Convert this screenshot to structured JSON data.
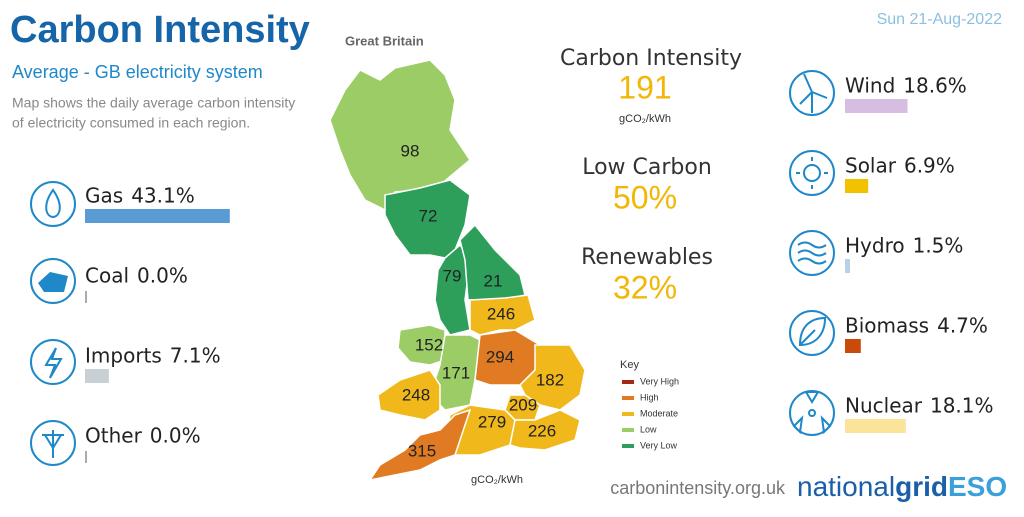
{
  "header": {
    "title": "Carbon Intensity",
    "region": "Great Britain",
    "date": "Sun 21-Aug-2022",
    "subtitle": "Average - GB electricity system",
    "description": [
      "Map shows the daily average carbon intensity",
      "of electricity consumed in each region."
    ]
  },
  "summary": {
    "intensity_title": "Carbon Intensity",
    "intensity_value": "191",
    "intensity_unit": "gCO₂/kWh",
    "low_carbon_title": "Low Carbon",
    "low_carbon_value": "50%",
    "renewables_title": "Renewables",
    "renewables_value": "32%"
  },
  "fuels": [
    {
      "name": "Gas",
      "label": "43.1%",
      "value": 43.1,
      "color": "#5b9bd5"
    },
    {
      "name": "Coal",
      "label": "0.0%",
      "value": 0.0,
      "color": "#555555"
    },
    {
      "name": "Imports",
      "label": "7.1%",
      "value": 7.1,
      "color": "#c8d0d4"
    },
    {
      "name": "Other",
      "label": "0.0%",
      "value": 0.0,
      "color": "#555555"
    },
    {
      "name": "Wind",
      "label": "18.6%",
      "value": 18.6,
      "color": "#d7bde2"
    },
    {
      "name": "Solar",
      "label": "6.9%",
      "value": 6.9,
      "color": "#f2c200"
    },
    {
      "name": "Hydro",
      "label": "1.5%",
      "value": 1.5,
      "color": "#b8d0e8"
    },
    {
      "name": "Biomass",
      "label": "4.7%",
      "value": 4.7,
      "color": "#c94a0a"
    },
    {
      "name": "Nuclear",
      "label": "18.1%",
      "value": 18.1,
      "color": "#fbe39a"
    }
  ],
  "regions": [
    {
      "value": 98,
      "color": "#9ccc65"
    },
    {
      "value": 72,
      "color": "#2e9e5b"
    },
    {
      "value": 79,
      "color": "#2e9e5b"
    },
    {
      "value": 21,
      "color": "#2e9e5b"
    },
    {
      "value": 246,
      "color": "#f0b81a"
    },
    {
      "value": 152,
      "color": "#9ccc65"
    },
    {
      "value": 171,
      "color": "#9ccc65"
    },
    {
      "value": 294,
      "color": "#e07b24"
    },
    {
      "value": 182,
      "color": "#f0b81a"
    },
    {
      "value": 248,
      "color": "#f0b81a"
    },
    {
      "value": 209,
      "color": "#f0b81a"
    },
    {
      "value": 279,
      "color": "#f0b81a"
    },
    {
      "value": 226,
      "color": "#f0b81a"
    },
    {
      "value": 315,
      "color": "#e07b24"
    }
  ],
  "key": {
    "title": "Key",
    "unit": "gCO₂/kWh",
    "items": [
      {
        "label": "Very High",
        "color": "#a32a12"
      },
      {
        "label": "High",
        "color": "#e07b24"
      },
      {
        "label": "Moderate",
        "color": "#f0b81a"
      },
      {
        "label": "Low",
        "color": "#9ccc65"
      },
      {
        "label": "Very Low",
        "color": "#2e9e5b"
      }
    ]
  },
  "footer": {
    "url": "carbonintensity.org.uk",
    "logo": [
      "national",
      "grid",
      "ESO"
    ]
  }
}
